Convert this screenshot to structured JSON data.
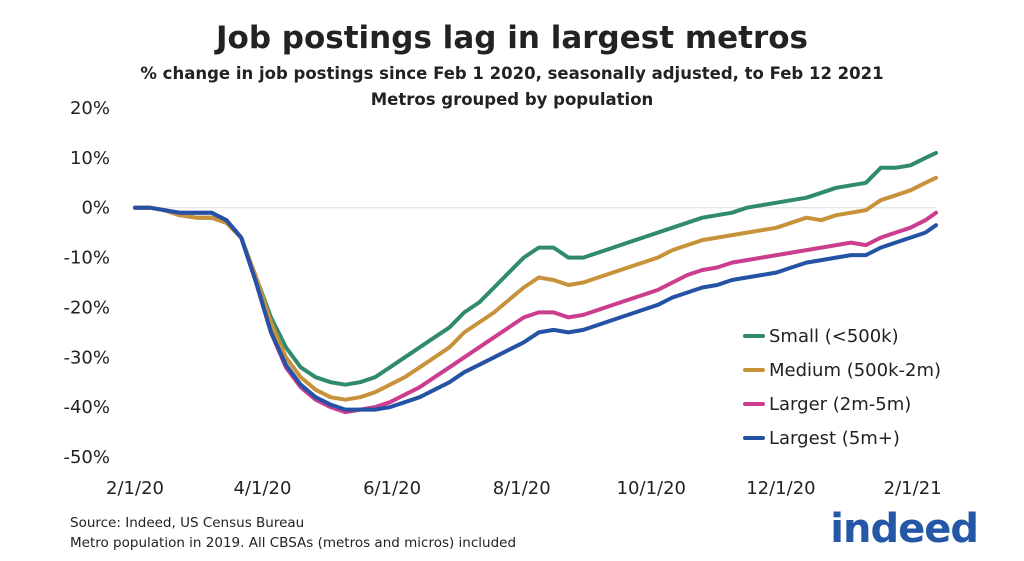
{
  "chart_data": {
    "type": "line",
    "title": "Job postings lag in largest metros",
    "subtitle": "% change in job postings since Feb 1 2020, seasonally adjusted, to Feb 12 2021",
    "subtitle2": "Metros grouped by population",
    "xlabel": "",
    "ylabel": "",
    "ylim": [
      -50,
      20
    ],
    "yticks": [
      20,
      10,
      0,
      -10,
      -20,
      -30,
      -40,
      -50
    ],
    "ytick_labels": [
      "20%",
      "10%",
      "0%",
      "-10%",
      "-20%",
      "-30%",
      "-40%",
      "-50%"
    ],
    "xlim": [
      "2020-02-01",
      "2021-02-12"
    ],
    "xticks": [
      "2020-02-01",
      "2020-04-01",
      "2020-06-01",
      "2020-08-01",
      "2020-10-01",
      "2020-12-01",
      "2021-02-01"
    ],
    "xtick_labels": [
      "2/1/20",
      "4/1/20",
      "6/1/20",
      "8/1/20",
      "10/1/20",
      "12/1/20",
      "2/1/21"
    ],
    "grid": "zero-line only",
    "legend_position": "bottom-right",
    "series": [
      {
        "name": "Small (<500k)",
        "color": "#2f8a6e",
        "points": [
          [
            "2020-02-01",
            0
          ],
          [
            "2020-02-08",
            0
          ],
          [
            "2020-02-15",
            -0.5
          ],
          [
            "2020-02-22",
            -1.5
          ],
          [
            "2020-03-01",
            -2
          ],
          [
            "2020-03-08",
            -2
          ],
          [
            "2020-03-15",
            -3
          ],
          [
            "2020-03-22",
            -6
          ],
          [
            "2020-03-29",
            -14
          ],
          [
            "2020-04-05",
            -22
          ],
          [
            "2020-04-12",
            -28
          ],
          [
            "2020-04-19",
            -32
          ],
          [
            "2020-04-26",
            -34
          ],
          [
            "2020-05-03",
            -35
          ],
          [
            "2020-05-10",
            -35.5
          ],
          [
            "2020-05-17",
            -35
          ],
          [
            "2020-05-24",
            -34
          ],
          [
            "2020-05-31",
            -32
          ],
          [
            "2020-06-07",
            -30
          ],
          [
            "2020-06-14",
            -28
          ],
          [
            "2020-06-21",
            -26
          ],
          [
            "2020-06-28",
            -24
          ],
          [
            "2020-07-05",
            -21
          ],
          [
            "2020-07-12",
            -19
          ],
          [
            "2020-07-19",
            -16
          ],
          [
            "2020-07-26",
            -13
          ],
          [
            "2020-08-02",
            -10
          ],
          [
            "2020-08-09",
            -8
          ],
          [
            "2020-08-16",
            -8
          ],
          [
            "2020-08-23",
            -10
          ],
          [
            "2020-08-30",
            -10
          ],
          [
            "2020-09-06",
            -9
          ],
          [
            "2020-09-13",
            -8
          ],
          [
            "2020-09-20",
            -7
          ],
          [
            "2020-09-27",
            -6
          ],
          [
            "2020-10-04",
            -5
          ],
          [
            "2020-10-11",
            -4
          ],
          [
            "2020-10-18",
            -3
          ],
          [
            "2020-10-25",
            -2
          ],
          [
            "2020-11-01",
            -1.5
          ],
          [
            "2020-11-08",
            -1
          ],
          [
            "2020-11-15",
            0
          ],
          [
            "2020-11-22",
            0.5
          ],
          [
            "2020-11-29",
            1
          ],
          [
            "2020-12-06",
            1.5
          ],
          [
            "2020-12-13",
            2
          ],
          [
            "2020-12-20",
            3
          ],
          [
            "2020-12-27",
            4
          ],
          [
            "2021-01-03",
            4.5
          ],
          [
            "2021-01-10",
            5
          ],
          [
            "2021-01-17",
            8
          ],
          [
            "2021-01-24",
            8
          ],
          [
            "2021-01-31",
            8.5
          ],
          [
            "2021-02-07",
            10
          ],
          [
            "2021-02-12",
            11
          ]
        ]
      },
      {
        "name": "Medium (500k-2m)",
        "color": "#c8923a",
        "points": [
          [
            "2020-02-01",
            0
          ],
          [
            "2020-02-08",
            0
          ],
          [
            "2020-02-15",
            -0.5
          ],
          [
            "2020-02-22",
            -1.5
          ],
          [
            "2020-03-01",
            -2
          ],
          [
            "2020-03-08",
            -2
          ],
          [
            "2020-03-15",
            -3
          ],
          [
            "2020-03-22",
            -6
          ],
          [
            "2020-03-29",
            -14
          ],
          [
            "2020-04-05",
            -23
          ],
          [
            "2020-04-12",
            -30
          ],
          [
            "2020-04-19",
            -34
          ],
          [
            "2020-04-26",
            -36.5
          ],
          [
            "2020-05-03",
            -38
          ],
          [
            "2020-05-10",
            -38.5
          ],
          [
            "2020-05-17",
            -38
          ],
          [
            "2020-05-24",
            -37
          ],
          [
            "2020-05-31",
            -35.5
          ],
          [
            "2020-06-07",
            -34
          ],
          [
            "2020-06-14",
            -32
          ],
          [
            "2020-06-21",
            -30
          ],
          [
            "2020-06-28",
            -28
          ],
          [
            "2020-07-05",
            -25
          ],
          [
            "2020-07-12",
            -23
          ],
          [
            "2020-07-19",
            -21
          ],
          [
            "2020-07-26",
            -18.5
          ],
          [
            "2020-08-02",
            -16
          ],
          [
            "2020-08-09",
            -14
          ],
          [
            "2020-08-16",
            -14.5
          ],
          [
            "2020-08-23",
            -15.5
          ],
          [
            "2020-08-30",
            -15
          ],
          [
            "2020-09-06",
            -14
          ],
          [
            "2020-09-13",
            -13
          ],
          [
            "2020-09-20",
            -12
          ],
          [
            "2020-09-27",
            -11
          ],
          [
            "2020-10-04",
            -10
          ],
          [
            "2020-10-11",
            -8.5
          ],
          [
            "2020-10-18",
            -7.5
          ],
          [
            "2020-10-25",
            -6.5
          ],
          [
            "2020-11-01",
            -6
          ],
          [
            "2020-11-08",
            -5.5
          ],
          [
            "2020-11-15",
            -5
          ],
          [
            "2020-11-22",
            -4.5
          ],
          [
            "2020-11-29",
            -4
          ],
          [
            "2020-12-06",
            -3
          ],
          [
            "2020-12-13",
            -2
          ],
          [
            "2020-12-20",
            -2.5
          ],
          [
            "2020-12-27",
            -1.5
          ],
          [
            "2021-01-03",
            -1
          ],
          [
            "2021-01-10",
            -0.5
          ],
          [
            "2021-01-17",
            1.5
          ],
          [
            "2021-01-24",
            2.5
          ],
          [
            "2021-01-31",
            3.5
          ],
          [
            "2021-02-07",
            5
          ],
          [
            "2021-02-12",
            6
          ]
        ]
      },
      {
        "name": "Larger (2m-5m)",
        "color": "#cc3d8f",
        "points": [
          [
            "2020-02-01",
            0
          ],
          [
            "2020-02-08",
            0
          ],
          [
            "2020-02-15",
            -0.5
          ],
          [
            "2020-02-22",
            -1
          ],
          [
            "2020-03-01",
            -1
          ],
          [
            "2020-03-08",
            -1
          ],
          [
            "2020-03-15",
            -2.5
          ],
          [
            "2020-03-22",
            -6
          ],
          [
            "2020-03-29",
            -15
          ],
          [
            "2020-04-05",
            -25
          ],
          [
            "2020-04-12",
            -32
          ],
          [
            "2020-04-19",
            -36
          ],
          [
            "2020-04-26",
            -38.5
          ],
          [
            "2020-05-03",
            -40
          ],
          [
            "2020-05-10",
            -41
          ],
          [
            "2020-05-17",
            -40.5
          ],
          [
            "2020-05-24",
            -40
          ],
          [
            "2020-05-31",
            -39
          ],
          [
            "2020-06-07",
            -37.5
          ],
          [
            "2020-06-14",
            -36
          ],
          [
            "2020-06-21",
            -34
          ],
          [
            "2020-06-28",
            -32
          ],
          [
            "2020-07-05",
            -30
          ],
          [
            "2020-07-12",
            -28
          ],
          [
            "2020-07-19",
            -26
          ],
          [
            "2020-07-26",
            -24
          ],
          [
            "2020-08-02",
            -22
          ],
          [
            "2020-08-09",
            -21
          ],
          [
            "2020-08-16",
            -21
          ],
          [
            "2020-08-23",
            -22
          ],
          [
            "2020-08-30",
            -21.5
          ],
          [
            "2020-09-06",
            -20.5
          ],
          [
            "2020-09-13",
            -19.5
          ],
          [
            "2020-09-20",
            -18.5
          ],
          [
            "2020-09-27",
            -17.5
          ],
          [
            "2020-10-04",
            -16.5
          ],
          [
            "2020-10-11",
            -15
          ],
          [
            "2020-10-18",
            -13.5
          ],
          [
            "2020-10-25",
            -12.5
          ],
          [
            "2020-11-01",
            -12
          ],
          [
            "2020-11-08",
            -11
          ],
          [
            "2020-11-15",
            -10.5
          ],
          [
            "2020-11-22",
            -10
          ],
          [
            "2020-11-29",
            -9.5
          ],
          [
            "2020-12-06",
            -9
          ],
          [
            "2020-12-13",
            -8.5
          ],
          [
            "2020-12-20",
            -8
          ],
          [
            "2020-12-27",
            -7.5
          ],
          [
            "2021-01-03",
            -7
          ],
          [
            "2021-01-10",
            -7.5
          ],
          [
            "2021-01-17",
            -6
          ],
          [
            "2021-01-24",
            -5
          ],
          [
            "2021-01-31",
            -4
          ],
          [
            "2021-02-07",
            -2.5
          ],
          [
            "2021-02-12",
            -1
          ]
        ]
      },
      {
        "name": "Largest (5m+)",
        "color": "#2452a4",
        "points": [
          [
            "2020-02-01",
            0
          ],
          [
            "2020-02-08",
            0
          ],
          [
            "2020-02-15",
            -0.5
          ],
          [
            "2020-02-22",
            -1
          ],
          [
            "2020-03-01",
            -1
          ],
          [
            "2020-03-08",
            -1
          ],
          [
            "2020-03-15",
            -2.5
          ],
          [
            "2020-03-22",
            -6
          ],
          [
            "2020-03-29",
            -15
          ],
          [
            "2020-04-05",
            -25
          ],
          [
            "2020-04-12",
            -31.5
          ],
          [
            "2020-04-19",
            -35.5
          ],
          [
            "2020-04-26",
            -38
          ],
          [
            "2020-05-03",
            -39.5
          ],
          [
            "2020-05-10",
            -40.5
          ],
          [
            "2020-05-17",
            -40.5
          ],
          [
            "2020-05-24",
            -40.5
          ],
          [
            "2020-05-31",
            -40
          ],
          [
            "2020-06-07",
            -39
          ],
          [
            "2020-06-14",
            -38
          ],
          [
            "2020-06-21",
            -36.5
          ],
          [
            "2020-06-28",
            -35
          ],
          [
            "2020-07-05",
            -33
          ],
          [
            "2020-07-12",
            -31.5
          ],
          [
            "2020-07-19",
            -30
          ],
          [
            "2020-07-26",
            -28.5
          ],
          [
            "2020-08-02",
            -27
          ],
          [
            "2020-08-09",
            -25
          ],
          [
            "2020-08-16",
            -24.5
          ],
          [
            "2020-08-23",
            -25
          ],
          [
            "2020-08-30",
            -24.5
          ],
          [
            "2020-09-06",
            -23.5
          ],
          [
            "2020-09-13",
            -22.5
          ],
          [
            "2020-09-20",
            -21.5
          ],
          [
            "2020-09-27",
            -20.5
          ],
          [
            "2020-10-04",
            -19.5
          ],
          [
            "2020-10-11",
            -18
          ],
          [
            "2020-10-18",
            -17
          ],
          [
            "2020-10-25",
            -16
          ],
          [
            "2020-11-01",
            -15.5
          ],
          [
            "2020-11-08",
            -14.5
          ],
          [
            "2020-11-15",
            -14
          ],
          [
            "2020-11-22",
            -13.5
          ],
          [
            "2020-11-29",
            -13
          ],
          [
            "2020-12-06",
            -12
          ],
          [
            "2020-12-13",
            -11
          ],
          [
            "2020-12-20",
            -10.5
          ],
          [
            "2020-12-27",
            -10
          ],
          [
            "2021-01-03",
            -9.5
          ],
          [
            "2021-01-10",
            -9.5
          ],
          [
            "2021-01-17",
            -8
          ],
          [
            "2021-01-24",
            -7
          ],
          [
            "2021-01-31",
            -6
          ],
          [
            "2021-02-07",
            -5
          ],
          [
            "2021-02-12",
            -3.5
          ]
        ]
      }
    ]
  },
  "footer": {
    "source_line1": "Source: Indeed, US Census Bureau",
    "source_line2": "Metro population in 2019. All CBSAs (metros and micros) included",
    "logo_text": "indeed",
    "logo_color": "#2557a7"
  }
}
